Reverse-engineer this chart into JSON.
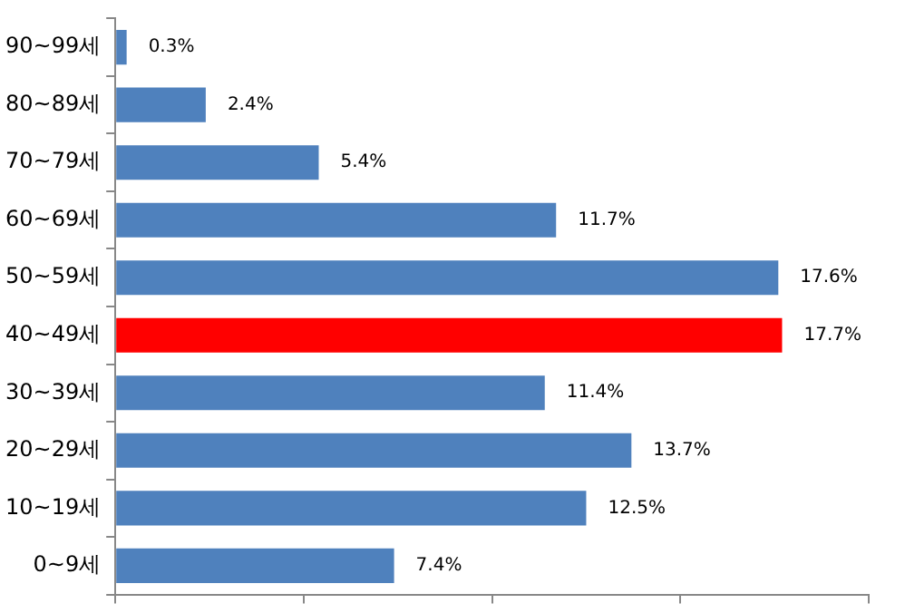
{
  "chart_data": {
    "type": "bar",
    "orientation": "horizontal",
    "categories": [
      "90~99세",
      "80~89세",
      "70~79세",
      "60~69세",
      "50~59세",
      "40~49세",
      "30~39세",
      "20~29세",
      "10~19세",
      "0~9세"
    ],
    "values": [
      0.3,
      2.4,
      5.4,
      11.7,
      17.6,
      17.7,
      11.4,
      13.7,
      12.5,
      7.4
    ],
    "colors": [
      "#4f81bd",
      "#4f81bd",
      "#4f81bd",
      "#4f81bd",
      "#4f81bd",
      "#ff0000",
      "#4f81bd",
      "#4f81bd",
      "#4f81bd",
      "#4f81bd"
    ],
    "value_labels": [
      "0.3%",
      "2.4%",
      "5.4%",
      "11.7%",
      "17.6%",
      "17.7%",
      "11.4%",
      "13.7%",
      "12.5%",
      "7.4%"
    ],
    "xlim": [
      0,
      20
    ],
    "xticks": [
      {
        "value": 0,
        "label": null
      },
      {
        "value": 5,
        "label": null
      },
      {
        "value": 10,
        "label": null
      },
      {
        "value": 15,
        "label": null
      },
      {
        "value": 20,
        "label": null
      }
    ],
    "tick_labels": "y",
    "grid": false,
    "legend": false
  }
}
